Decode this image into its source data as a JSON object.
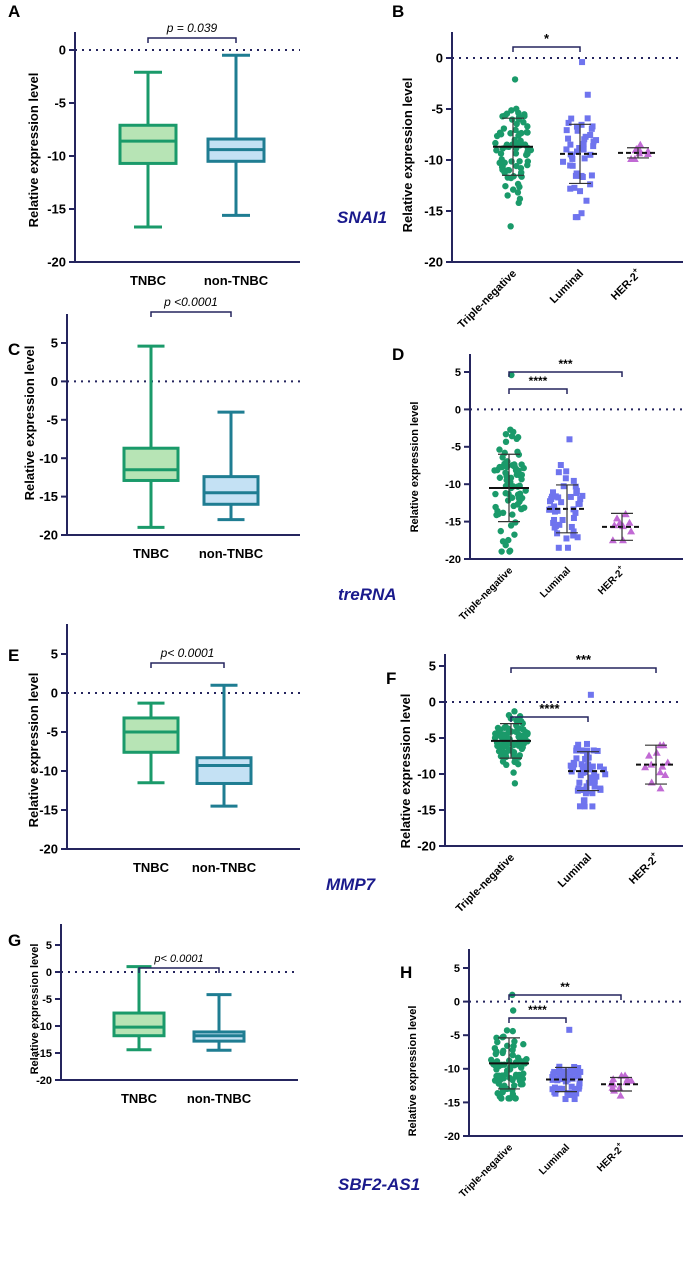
{
  "colors": {
    "axis": "#25255e",
    "tnbc_stroke": "#1a9a6a",
    "tnbc_fill": "#b7e4b5",
    "non_stroke": "#1f7d92",
    "non_fill": "#c4e1f4",
    "triple": "#1a9a6a",
    "luminal": "#6f74ee",
    "her2": "#c16ad4",
    "gene": "#1a1a8c"
  },
  "chart_data": [
    {
      "panel": "A",
      "type": "boxplot",
      "ylabel": "Relative expression level",
      "ylim": [
        -20,
        0
      ],
      "yticks": [
        "0",
        "-5",
        "-10",
        "-15",
        "-20"
      ],
      "categories": [
        "TNBC",
        "non-TNBC"
      ],
      "boxes": [
        {
          "name": "TNBC",
          "min": -16.7,
          "q1": -10.7,
          "median": -8.6,
          "q3": -7.1,
          "max": -2.1
        },
        {
          "name": "non-TNBC",
          "min": -15.6,
          "q1": -10.5,
          "median": -9.4,
          "q3": -8.4,
          "max": -0.5
        }
      ],
      "annotation": "p = 0.039"
    },
    {
      "panel": "B",
      "type": "scatter",
      "ylabel": "Relative expression level",
      "ylim": [
        -20,
        0
      ],
      "yticks": [
        "0",
        "-5",
        "-10",
        "-15",
        "-20"
      ],
      "categories": [
        "Triple-negative",
        "Luminal",
        "HER-2"
      ],
      "groups": [
        {
          "name": "Triple-negative",
          "n": 80,
          "mean": -8.7,
          "sd": 2.8,
          "min": -16.5,
          "max": -2.1
        },
        {
          "name": "Luminal",
          "n": 45,
          "mean": -9.4,
          "sd": 2.9,
          "min": -15.6,
          "max": -0.4
        },
        {
          "name": "HER-2",
          "n": 10,
          "mean": -9.3,
          "sd": 0.5,
          "min": -9.9,
          "max": -8.5
        }
      ],
      "significance": [
        {
          "from": 0,
          "to": 1,
          "label": "*"
        }
      ]
    },
    {
      "panel": "C",
      "type": "boxplot",
      "ylabel": "Relative expression level",
      "ylim": [
        -20,
        5
      ],
      "yticks": [
        "5",
        "0",
        "-5",
        "-10",
        "-15",
        "-20"
      ],
      "categories": [
        "TNBC",
        "non-TNBC"
      ],
      "boxes": [
        {
          "name": "TNBC",
          "min": -19,
          "q1": -12.9,
          "median": -11.5,
          "q3": -8.7,
          "max": 4.6
        },
        {
          "name": "non-TNBC",
          "min": -18,
          "q1": -16.0,
          "median": -14.5,
          "q3": -12.4,
          "max": -4.0
        }
      ],
      "annotation": "p <0.0001"
    },
    {
      "panel": "D",
      "type": "scatter",
      "ylabel": "Relative expression level",
      "ylim": [
        -20,
        5
      ],
      "yticks": [
        "5",
        "0",
        "-5",
        "-10",
        "-15",
        "-20"
      ],
      "categories": [
        "Triple-negative",
        "Luminal",
        "HER-2"
      ],
      "groups": [
        {
          "name": "Triple-negative",
          "n": 80,
          "mean": -10.5,
          "sd": 4.5,
          "min": -19,
          "max": 4.6
        },
        {
          "name": "Luminal",
          "n": 45,
          "mean": -13.3,
          "sd": 3.2,
          "min": -18.5,
          "max": -4.0
        },
        {
          "name": "HER-2",
          "n": 10,
          "mean": -15.7,
          "sd": 1.8,
          "min": -17.5,
          "max": -14.0
        }
      ],
      "significance": [
        {
          "from": 0,
          "to": 1,
          "label": "****"
        },
        {
          "from": 0,
          "to": 2,
          "label": "***"
        }
      ]
    },
    {
      "panel": "E",
      "type": "boxplot",
      "ylabel": "Relative expression level",
      "ylim": [
        -20,
        5
      ],
      "yticks": [
        "5",
        "0",
        "-5",
        "-10",
        "-15",
        "-20"
      ],
      "categories": [
        "TNBC",
        "non-TNBC"
      ],
      "boxes": [
        {
          "name": "TNBC",
          "min": -11.5,
          "q1": -7.6,
          "median": -5.0,
          "q3": -3.2,
          "max": -1.3
        },
        {
          "name": "non-TNBC",
          "min": -14.5,
          "q1": -11.6,
          "median": -9.3,
          "q3": -8.3,
          "max": 1.0
        }
      ],
      "annotation": "p< 0.0001"
    },
    {
      "panel": "F",
      "type": "scatter",
      "ylabel": "Relative expression level",
      "ylim": [
        -20,
        5
      ],
      "yticks": [
        "5",
        "0",
        "-5",
        "-10",
        "-15",
        "-20"
      ],
      "categories": [
        "Triple-negative",
        "Luminal",
        "HER-2"
      ],
      "groups": [
        {
          "name": "Triple-negative",
          "n": 90,
          "mean": -5.4,
          "sd": 2.4,
          "min": -11.3,
          "max": -1.3
        },
        {
          "name": "Luminal",
          "n": 60,
          "mean": -9.6,
          "sd": 2.7,
          "min": -14.5,
          "max": 1.0
        },
        {
          "name": "HER-2",
          "n": 12,
          "mean": -8.7,
          "sd": 2.7,
          "min": -12.0,
          "max": -6.0
        }
      ],
      "significance": [
        {
          "from": 0,
          "to": 1,
          "label": "****"
        },
        {
          "from": 0,
          "to": 2,
          "label": "***"
        }
      ]
    },
    {
      "panel": "G",
      "type": "boxplot",
      "ylabel": "Relative expression level",
      "ylim": [
        -20,
        5
      ],
      "yticks": [
        "5",
        "0",
        "-5",
        "-10",
        "-15",
        "-20"
      ],
      "categories": [
        "TNBC",
        "non-TNBC"
      ],
      "boxes": [
        {
          "name": "TNBC",
          "min": -14.4,
          "q1": -11.8,
          "median": -10.2,
          "q3": -7.6,
          "max": 1.0
        },
        {
          "name": "non-TNBC",
          "min": -14.5,
          "q1": -12.8,
          "median": -11.8,
          "q3": -11.1,
          "max": -4.2
        }
      ],
      "annotation": "p< 0.0001"
    },
    {
      "panel": "H",
      "type": "scatter",
      "ylabel": "Relative expression level",
      "ylim": [
        -20,
        5
      ],
      "yticks": [
        "5",
        "0",
        "-5",
        "-10",
        "-15",
        "-20"
      ],
      "categories": [
        "Triple-negative",
        "Luminal",
        "HER-2"
      ],
      "groups": [
        {
          "name": "Triple-negative",
          "n": 80,
          "mean": -9.2,
          "sd": 3.8,
          "min": -14.4,
          "max": 1.0
        },
        {
          "name": "Luminal",
          "n": 50,
          "mean": -11.6,
          "sd": 1.8,
          "min": -14.5,
          "max": -4.2
        },
        {
          "name": "HER-2",
          "n": 12,
          "mean": -12.3,
          "sd": 1.0,
          "min": -14.0,
          "max": -11.0
        }
      ],
      "significance": [
        {
          "from": 0,
          "to": 1,
          "label": "****"
        },
        {
          "from": 0,
          "to": 2,
          "label": "**"
        }
      ]
    }
  ],
  "genes": [
    "SNAI1",
    "treRNA",
    "MMP7",
    "SBF2-AS1"
  ],
  "her2_superscript": "+"
}
